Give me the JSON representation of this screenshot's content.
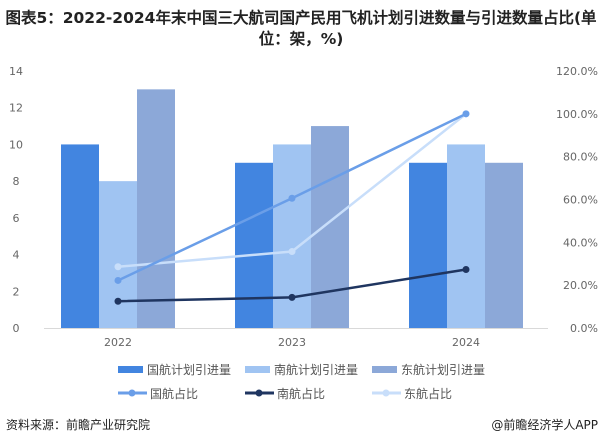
{
  "title": "图表5：2022-2024年末中国三大航司国产民用飞机计划引进数量与引进数量占比(单位：架，%)",
  "source": "资料来源：前瞻产业研究院",
  "brand": "@前瞻经济学人APP",
  "chart_data": {
    "type": "bar+line",
    "title": "图表5：2022-2024年末中国三大航司国产民用飞机计划引进数量与引进数量占比(单位：架，%)",
    "categories": [
      "2022",
      "2023",
      "2024"
    ],
    "y_left": {
      "range": [
        0,
        14
      ],
      "ticks": [
        "0",
        "2",
        "4",
        "6",
        "8",
        "10",
        "12",
        "14"
      ]
    },
    "y_right": {
      "range": [
        0,
        120
      ],
      "ticks": [
        "0.0%",
        "20.0%",
        "40.0%",
        "60.0%",
        "80.0%",
        "100.0%",
        "120.0%"
      ]
    },
    "bar_series": [
      {
        "name": "国航计划引进量",
        "values": [
          10,
          9,
          9
        ],
        "color": "#4285e0"
      },
      {
        "name": "南航计划引进量",
        "values": [
          8,
          10,
          10
        ],
        "color": "#a0c4f2"
      },
      {
        "name": "东航计划引进量",
        "values": [
          13,
          11,
          9
        ],
        "color": "#8ca8d8"
      }
    ],
    "line_series": [
      {
        "name": "国航占比",
        "values": [
          22.2,
          60.6,
          100
        ],
        "color": "#6a9ee8"
      },
      {
        "name": "南航占比",
        "values": [
          12.5,
          14.3,
          27.3
        ],
        "color": "#1f3560"
      },
      {
        "name": "东航占比",
        "values": [
          28.6,
          35.7,
          100
        ],
        "color": "#c8defa"
      }
    ],
    "grid": false,
    "legend": "bottom"
  }
}
